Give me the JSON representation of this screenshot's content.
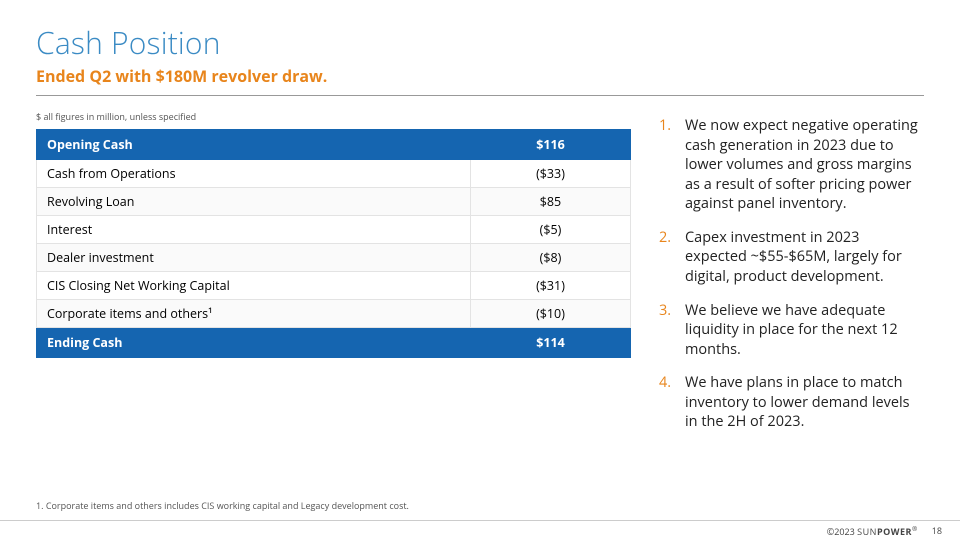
{
  "title": "Cash Position",
  "subtitle": "Ended Q2 with $180M revolver draw.",
  "figures_note": "$ all figures in million, unless specified",
  "colors": {
    "title": "#3b8bc4",
    "accent_orange": "#e8851c",
    "table_header_bg": "#1565b0",
    "table_header_text": "#ffffff",
    "text": "#222222",
    "rule": "#999999"
  },
  "table": {
    "header": {
      "label": "Opening Cash",
      "value": "$116"
    },
    "rows": [
      {
        "label": "Cash from Operations",
        "value": "($33)"
      },
      {
        "label": "Revolving Loan",
        "value": "$85"
      },
      {
        "label": "Interest",
        "value": "($5)"
      },
      {
        "label": "Dealer investment",
        "value": "($8)"
      },
      {
        "label": "CIS Closing Net Working Capital",
        "value": "($31)"
      },
      {
        "label": "Corporate items and others¹",
        "value": "($10)"
      }
    ],
    "footer": {
      "label": "Ending Cash",
      "value": "$114"
    }
  },
  "bullets": [
    "We now expect negative operating cash generation in 2023 due to lower volumes and gross margins as a result of softer pricing power against panel inventory.",
    "Capex investment in 2023 expected ~$55-$65M, largely for digital, product development.",
    "We believe we have adequate liquidity in place for the next 12 months.",
    "We have plans in place to match inventory to lower demand levels in the 2H of 2023."
  ],
  "footnote": "1.    Corporate items and others includes CIS working capital and Legacy development cost.",
  "footer": {
    "copyright": "©2023",
    "brand_light": "SUN",
    "brand_bold": "POWER",
    "reg": "®",
    "page": "18"
  }
}
